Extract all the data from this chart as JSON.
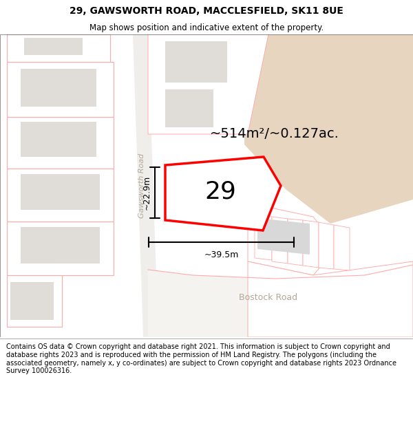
{
  "title": "29, GAWSWORTH ROAD, MACCLESFIELD, SK11 8UE",
  "subtitle": "Map shows position and indicative extent of the property.",
  "footer": "Contains OS data © Crown copyright and database right 2021. This information is subject to Crown copyright and database rights 2023 and is reproduced with the permission of HM Land Registry. The polygons (including the associated geometry, namely x, y co-ordinates) are subject to Crown copyright and database rights 2023 Ordnance Survey 100026316.",
  "area_label": "~514m²/~0.127ac.",
  "number_label": "29",
  "width_label": "~39.5m",
  "height_label": "~22.9m",
  "road_label": "Gawsworth Road",
  "bostock_label": "Bostock Road",
  "bg_map": "#ffffff",
  "plot_edge_color": "#ff0000",
  "pink_edge": "#ffaaaa",
  "gray_fill": "#e0ddd8",
  "tan_fill": "#e8d8c8",
  "road_fill": "#f0eeec",
  "title_fontsize": 10,
  "subtitle_fontsize": 8.5,
  "footer_fontsize": 7.0,
  "area_fontsize": 14,
  "number_fontsize": 26,
  "measure_fontsize": 9,
  "road_fontsize": 8
}
